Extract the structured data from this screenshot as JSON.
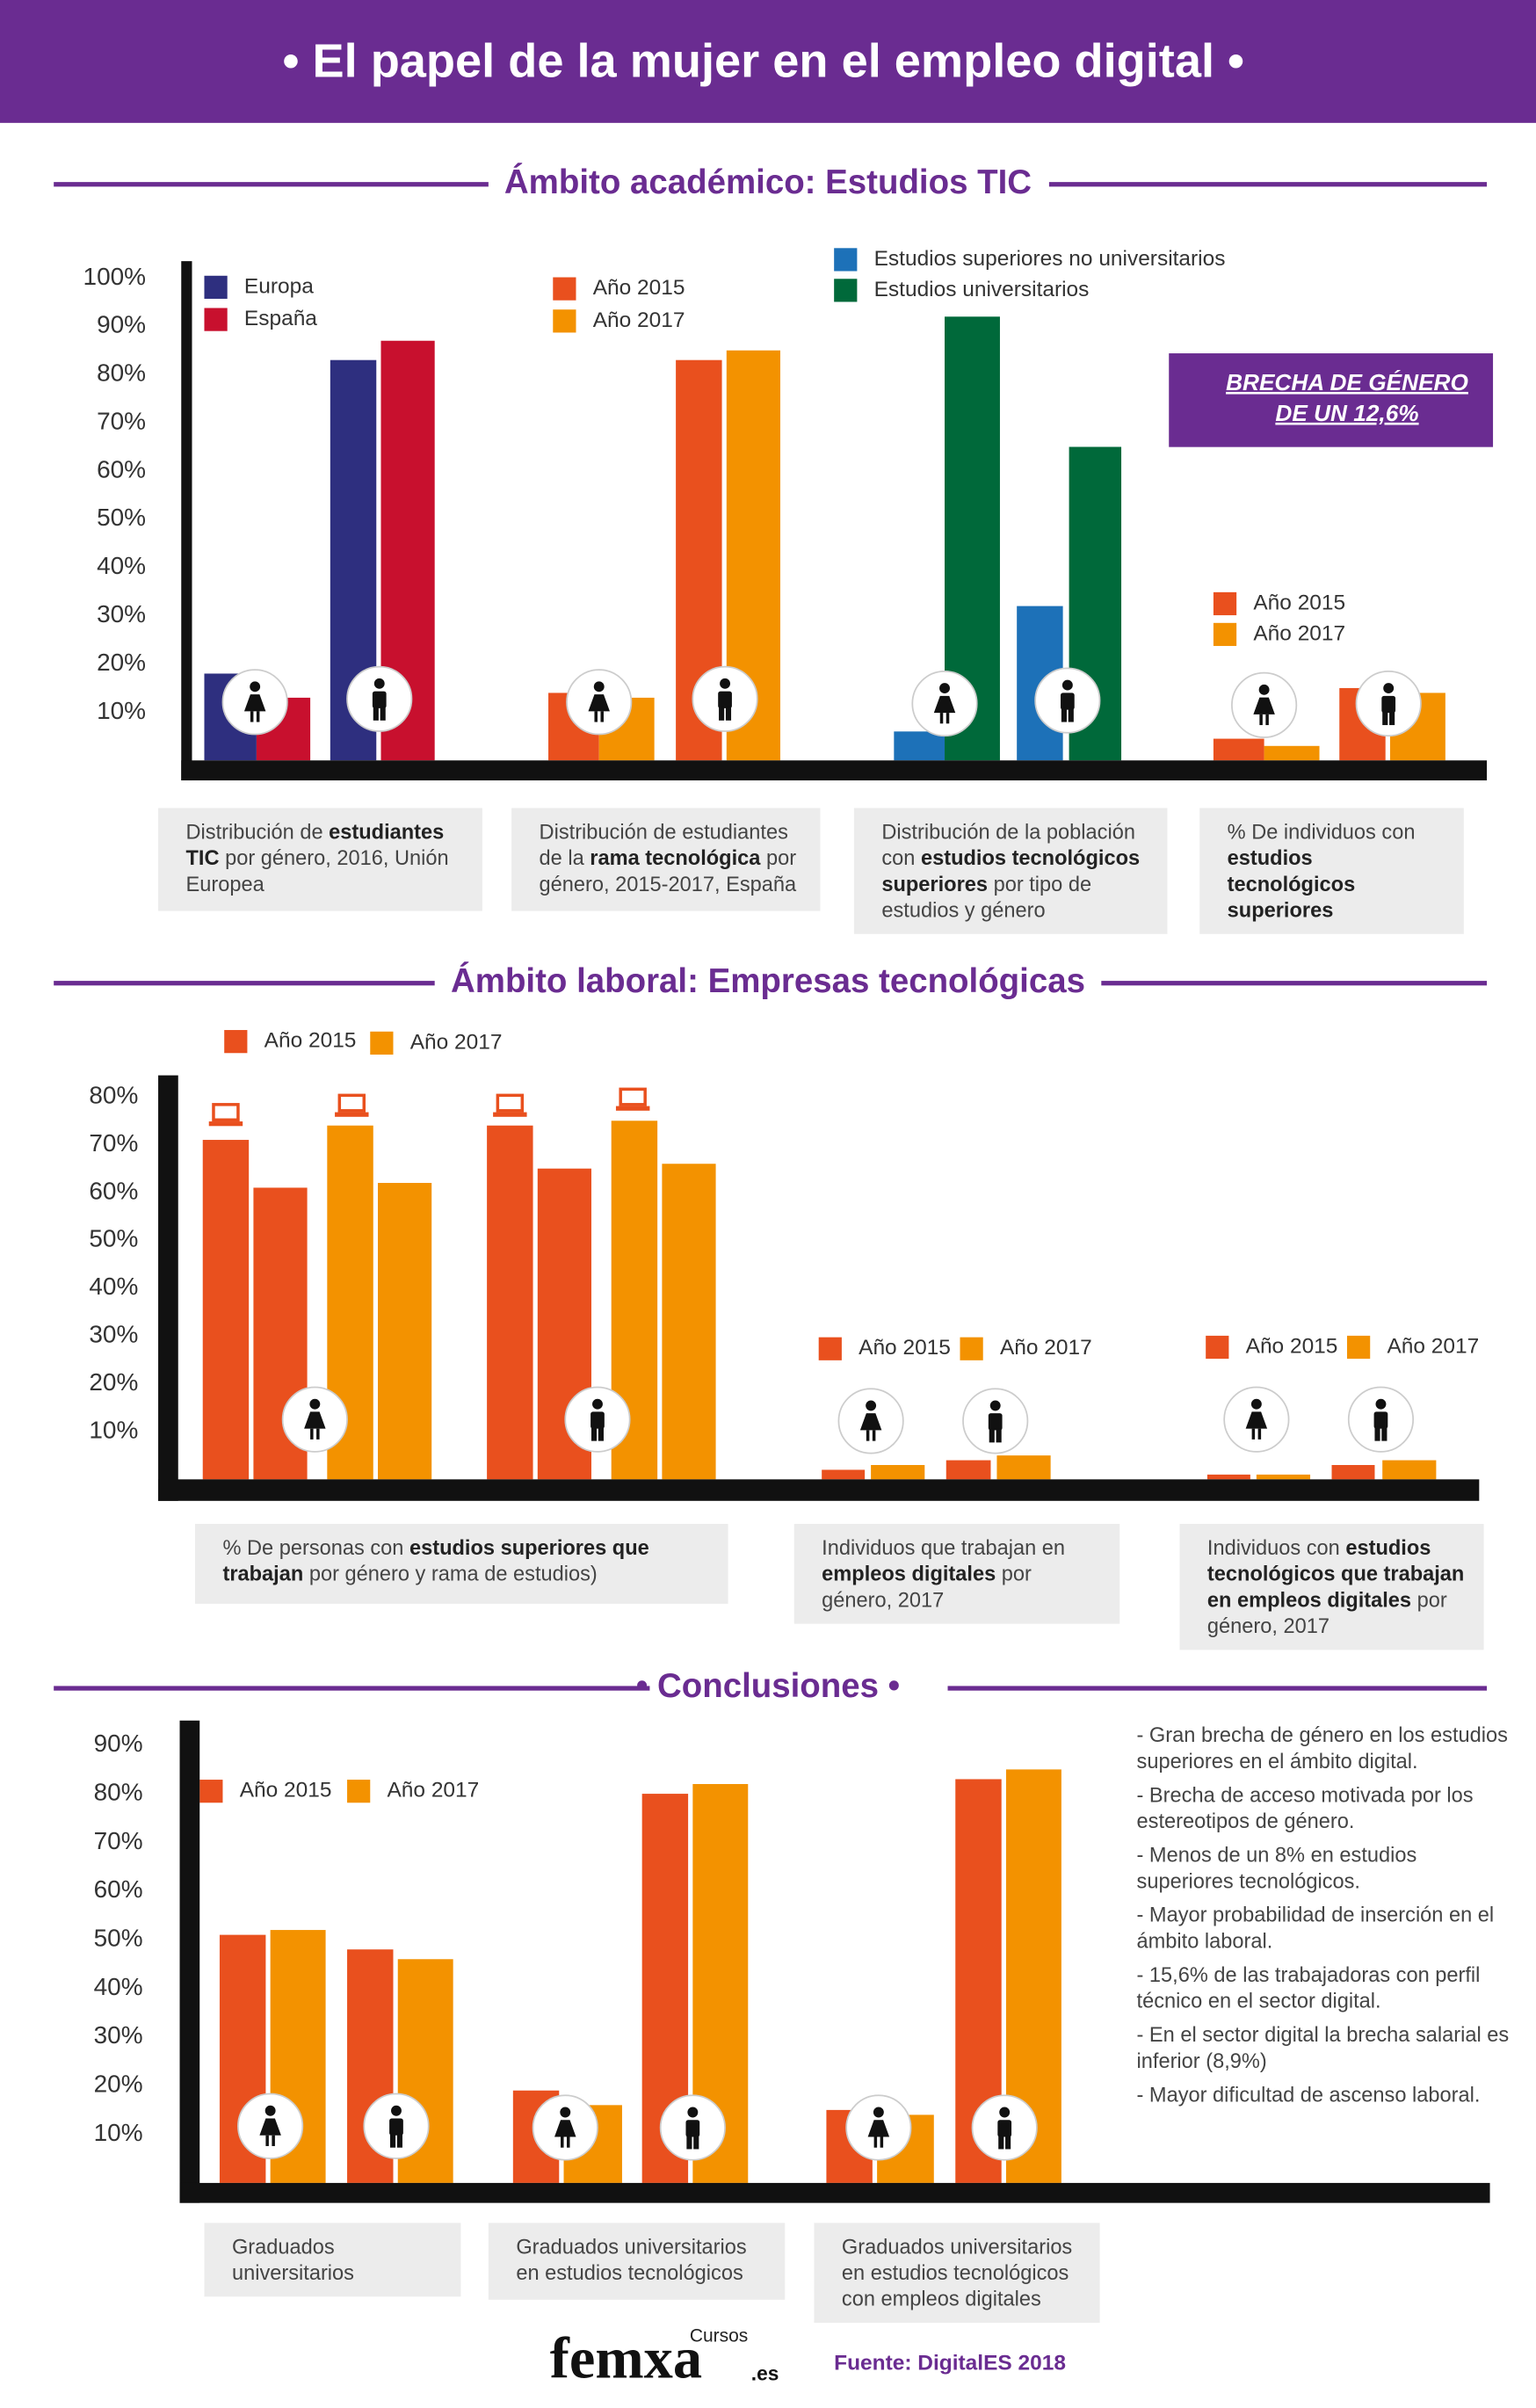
{
  "title": "• El papel de la mujer en el empleo digital •",
  "callout": [
    "BRECHA DE GÉNERO",
    "DE UN 12,6%"
  ],
  "conclusions": [
    "- Gran brecha de género en los estudios superiores en el ámbito digital.",
    "- Brecha de acceso motivada por los estereotipos de género.",
    "- Menos de un 8% en estudios superiores tecnológicos.",
    "- Mayor probabilidad de inserción en el ámbito laboral.",
    "- 15,6% de las trabajadoras con perfil técnico en el sector digital.",
    "- En el sector digital la brecha salarial es inferior (8,9%)",
    "- Mayor dificultad de ascenso laboral."
  ],
  "logo": [
    "Cursos",
    "femxa",
    ".es"
  ],
  "source": "Fuente: DigitalES 2018",
  "chart_data": [
    {
      "type": "bar",
      "title": "Ámbito académico: Estudios TIC",
      "ylim": [
        0,
        100
      ],
      "yticks": [
        {
          "value": 10,
          "label": "10%"
        },
        {
          "value": 20,
          "label": "20%"
        },
        {
          "value": 30,
          "label": "30%"
        },
        {
          "value": 40,
          "label": "40%"
        },
        {
          "value": 50,
          "label": "50%"
        },
        {
          "value": 60,
          "label": "60%"
        },
        {
          "value": 70,
          "label": "70%"
        },
        {
          "value": 80,
          "label": "80%"
        },
        {
          "value": 90,
          "label": "90%"
        },
        {
          "value": 100,
          "label": "100%"
        }
      ],
      "panels": [
        {
          "categories": [
            null,
            null
          ],
          "series": [
            {
              "name": "Europa",
              "color": "#2e2f7f",
              "values": [
                18,
                83
              ]
            },
            {
              "name": "España",
              "color": "#c8102e",
              "values": [
                13,
                87
              ]
            }
          ],
          "caption": [
            {
              "text": "Distribución de "
            },
            {
              "text": "estudiantes TIC",
              "bold": true
            },
            {
              "text": " por género, 2016, Unión Europea"
            }
          ]
        },
        {
          "categories": [
            null,
            null
          ],
          "series": [
            {
              "name": "Año 2015",
              "color": "#e9501e",
              "values": [
                14,
                83
              ]
            },
            {
              "name": "Año 2017",
              "color": "#f39200",
              "values": [
                13,
                85
              ]
            }
          ],
          "caption": [
            {
              "text": "Distribución de estudiantes de la "
            },
            {
              "text": "rama tecnológica",
              "bold": true
            },
            {
              "text": " por género, 2015-2017, España"
            }
          ]
        },
        {
          "categories": [
            null,
            null
          ],
          "series": [
            {
              "name": "Estudios superiores no universitarios",
              "color": "#1d71b8",
              "values": [
                6,
                32
              ]
            },
            {
              "name": "Estudios universitarios",
              "color": "#00693a",
              "values": [
                92,
                65
              ]
            }
          ],
          "caption": [
            {
              "text": "Distribución de la población con "
            },
            {
              "text": "estudios tecnológicos superiores",
              "bold": true
            },
            {
              "text": " por tipo de estudios y género"
            }
          ]
        },
        {
          "categories": [
            null,
            null
          ],
          "series": [
            {
              "name": "Año 2015",
              "color": "#e9501e",
              "values": [
                4.5,
                15
              ]
            },
            {
              "name": "Año 2017",
              "color": "#f39200",
              "values": [
                3,
                14
              ]
            }
          ],
          "caption": [
            {
              "text": "% De individuos con "
            },
            {
              "text": "estudios tecnológicos superiores",
              "bold": true
            }
          ]
        }
      ]
    },
    {
      "type": "bar",
      "title": "Ámbito laboral: Empresas tecnológicas",
      "ylim": [
        0,
        80
      ],
      "yticks": [
        {
          "value": 10,
          "label": "10%"
        },
        {
          "value": 20,
          "label": "20%"
        },
        {
          "value": 30,
          "label": "30%"
        },
        {
          "value": 40,
          "label": "40%"
        },
        {
          "value": 50,
          "label": "50%"
        },
        {
          "value": 60,
          "label": "60%"
        },
        {
          "value": 70,
          "label": "70%"
        },
        {
          "value": 80,
          "label": "80%"
        }
      ],
      "panels": [
        {
          "categories": [
            null,
            null,
            null,
            null
          ],
          "series": [
            {
              "name": "Año 2015",
              "color": "#e9501e",
              "values": [
                71,
                61,
                74,
                65
              ]
            },
            {
              "name": "Año 2017",
              "color": "#f39200",
              "values": [
                74,
                62,
                75,
                66
              ]
            }
          ],
          "caption": [
            {
              "text": "% De personas con "
            },
            {
              "text": "estudios superiores que trabajan",
              "bold": true
            },
            {
              "text": " por género y rama de estudios)"
            }
          ]
        },
        {
          "categories": [
            null,
            null
          ],
          "series": [
            {
              "name": "Año 2015",
              "color": "#e9501e",
              "values": [
                2,
                4
              ]
            },
            {
              "name": "Año 2017",
              "color": "#f39200",
              "values": [
                3,
                5
              ]
            }
          ],
          "caption": [
            {
              "text": "Individuos que trabajan en "
            },
            {
              "text": "empleos digitales",
              "bold": true
            },
            {
              "text": " por género, 2017"
            }
          ]
        },
        {
          "categories": [
            null,
            null
          ],
          "series": [
            {
              "name": "Año 2015",
              "color": "#e9501e",
              "values": [
                1,
                3
              ]
            },
            {
              "name": "Año 2017",
              "color": "#f39200",
              "values": [
                1,
                4
              ]
            }
          ],
          "caption": [
            {
              "text": "Individuos con "
            },
            {
              "text": "estudios tecnológicos que trabajan en empleos digitales",
              "bold": true
            },
            {
              "text": " por género, 2017"
            }
          ]
        }
      ]
    },
    {
      "type": "bar",
      "title": "• Conclusiones •",
      "ylim": [
        0,
        90
      ],
      "yticks": [
        {
          "value": 10,
          "label": "10%"
        },
        {
          "value": 20,
          "label": "20%"
        },
        {
          "value": 30,
          "label": "30%"
        },
        {
          "value": 40,
          "label": "40%"
        },
        {
          "value": 50,
          "label": "50%"
        },
        {
          "value": 60,
          "label": "60%"
        },
        {
          "value": 70,
          "label": "70%"
        },
        {
          "value": 80,
          "label": "80%"
        },
        {
          "value": 90,
          "label": "90%"
        }
      ],
      "categories": [
        null,
        null,
        null,
        null,
        null,
        null
      ],
      "series": [
        {
          "name": "Año 2015",
          "color": "#e9501e",
          "values": [
            51,
            48,
            19,
            80,
            15,
            83
          ]
        },
        {
          "name": "Año 2017",
          "color": "#f39200",
          "values": [
            52,
            46,
            16,
            82,
            14,
            85
          ]
        }
      ],
      "captions": [
        "Graduados universitarios",
        "Graduados universitarios en estudios tecnológicos",
        "Graduados universitarios en estudios tecnológicos con empleos digitales"
      ]
    }
  ]
}
